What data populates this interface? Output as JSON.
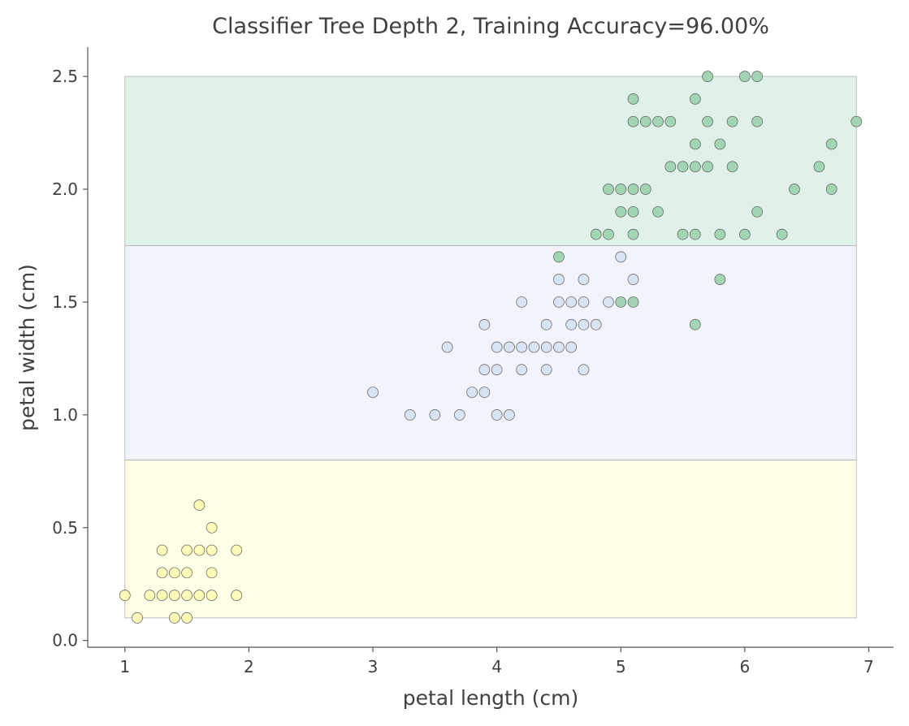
{
  "chart_data": {
    "type": "scatter",
    "title": "Classifier Tree Depth 2, Training Accuracy=96.00%",
    "xlabel": "petal length (cm)",
    "ylabel": "petal width (cm)",
    "xlim": [
      0.7,
      7.2
    ],
    "ylim": [
      -0.03,
      2.63
    ],
    "xticks": [
      1,
      2,
      3,
      4,
      5,
      6,
      7
    ],
    "xtick_labels": [
      "1",
      "2",
      "3",
      "4",
      "5",
      "6",
      "7"
    ],
    "yticks": [
      0.0,
      0.5,
      1.0,
      1.5,
      2.0,
      2.5
    ],
    "ytick_labels": [
      "0.0",
      "0.5",
      "1.0",
      "1.5",
      "2.0",
      "2.5"
    ],
    "grid": false,
    "regions": [
      {
        "x0": 1.0,
        "x1": 6.9,
        "y0": 0.1,
        "y1": 0.8,
        "color": "#fffee6"
      },
      {
        "x0": 1.0,
        "x1": 6.9,
        "y0": 0.8,
        "y1": 1.75,
        "color": "#f1f5fb"
      },
      {
        "x0": 1.0,
        "x1": 6.9,
        "y0": 1.75,
        "y1": 2.5,
        "color": "#e0f2e7"
      }
    ],
    "series": [
      {
        "color": "#fdfbb4",
        "points": [
          [
            1.0,
            0.2
          ],
          [
            1.1,
            0.1
          ],
          [
            1.2,
            0.2
          ],
          [
            1.3,
            0.2
          ],
          [
            1.3,
            0.3
          ],
          [
            1.3,
            0.4
          ],
          [
            1.4,
            0.1
          ],
          [
            1.4,
            0.2
          ],
          [
            1.4,
            0.3
          ],
          [
            1.5,
            0.1
          ],
          [
            1.5,
            0.2
          ],
          [
            1.5,
            0.3
          ],
          [
            1.5,
            0.4
          ],
          [
            1.6,
            0.2
          ],
          [
            1.6,
            0.4
          ],
          [
            1.6,
            0.6
          ],
          [
            1.7,
            0.2
          ],
          [
            1.7,
            0.3
          ],
          [
            1.7,
            0.4
          ],
          [
            1.7,
            0.5
          ],
          [
            1.9,
            0.2
          ],
          [
            1.9,
            0.4
          ]
        ]
      },
      {
        "color": "#d7e3f2",
        "points": [
          [
            3.0,
            1.1
          ],
          [
            3.3,
            1.0
          ],
          [
            3.5,
            1.0
          ],
          [
            3.6,
            1.3
          ],
          [
            3.7,
            1.0
          ],
          [
            3.8,
            1.1
          ],
          [
            3.9,
            1.1
          ],
          [
            3.9,
            1.2
          ],
          [
            3.9,
            1.4
          ],
          [
            4.0,
            1.0
          ],
          [
            4.0,
            1.2
          ],
          [
            4.0,
            1.3
          ],
          [
            4.1,
            1.0
          ],
          [
            4.1,
            1.3
          ],
          [
            4.2,
            1.2
          ],
          [
            4.2,
            1.3
          ],
          [
            4.2,
            1.5
          ],
          [
            4.3,
            1.3
          ],
          [
            4.4,
            1.2
          ],
          [
            4.4,
            1.3
          ],
          [
            4.4,
            1.4
          ],
          [
            4.5,
            1.3
          ],
          [
            4.5,
            1.5
          ],
          [
            4.5,
            1.6
          ],
          [
            4.6,
            1.3
          ],
          [
            4.6,
            1.4
          ],
          [
            4.6,
            1.5
          ],
          [
            4.7,
            1.2
          ],
          [
            4.7,
            1.4
          ],
          [
            4.7,
            1.5
          ],
          [
            4.7,
            1.6
          ],
          [
            4.8,
            1.4
          ],
          [
            4.9,
            1.5
          ],
          [
            5.0,
            1.7
          ],
          [
            5.1,
            1.6
          ]
        ]
      },
      {
        "color": "#9ed3b0",
        "points": [
          [
            4.5,
            1.7
          ],
          [
            5.0,
            1.5
          ],
          [
            5.1,
            1.5
          ],
          [
            5.6,
            1.4
          ],
          [
            5.8,
            1.6
          ],
          [
            4.8,
            1.8
          ],
          [
            4.9,
            1.8
          ],
          [
            5.1,
            1.8
          ],
          [
            5.5,
            1.8
          ],
          [
            5.6,
            1.8
          ],
          [
            5.8,
            1.8
          ],
          [
            6.0,
            1.8
          ],
          [
            6.3,
            1.8
          ],
          [
            5.0,
            1.9
          ],
          [
            5.1,
            1.9
          ],
          [
            5.3,
            1.9
          ],
          [
            6.1,
            1.9
          ],
          [
            4.9,
            2.0
          ],
          [
            5.0,
            2.0
          ],
          [
            5.1,
            2.0
          ],
          [
            5.2,
            2.0
          ],
          [
            6.4,
            2.0
          ],
          [
            6.7,
            2.0
          ],
          [
            5.4,
            2.1
          ],
          [
            5.5,
            2.1
          ],
          [
            5.6,
            2.1
          ],
          [
            5.7,
            2.1
          ],
          [
            5.9,
            2.1
          ],
          [
            6.6,
            2.1
          ],
          [
            5.6,
            2.2
          ],
          [
            5.8,
            2.2
          ],
          [
            6.7,
            2.2
          ],
          [
            5.1,
            2.3
          ],
          [
            5.2,
            2.3
          ],
          [
            5.3,
            2.3
          ],
          [
            5.4,
            2.3
          ],
          [
            5.7,
            2.3
          ],
          [
            5.9,
            2.3
          ],
          [
            6.1,
            2.3
          ],
          [
            6.9,
            2.3
          ],
          [
            5.1,
            2.4
          ],
          [
            5.6,
            2.4
          ],
          [
            5.7,
            2.5
          ],
          [
            6.0,
            2.5
          ],
          [
            6.1,
            2.5
          ]
        ]
      }
    ]
  }
}
